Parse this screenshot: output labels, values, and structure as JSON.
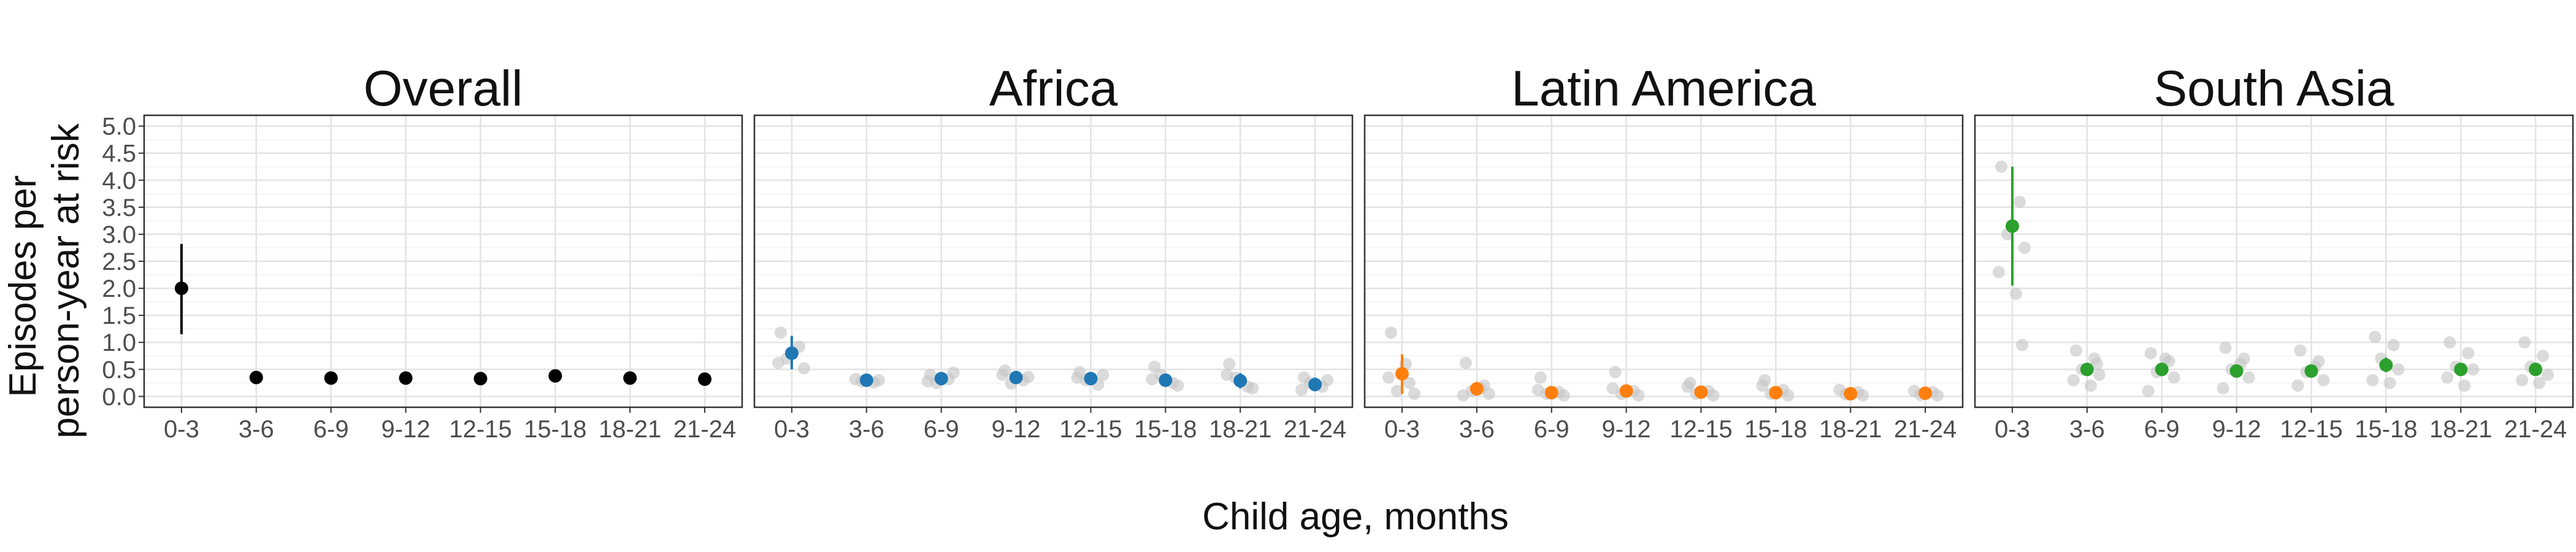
{
  "chart_data": {
    "type": "scatter",
    "xlabel": "Child age, months",
    "ylabel_line1": "Episodes per",
    "ylabel_line2": "person-year at risk",
    "categories": [
      "0-3",
      "3-6",
      "6-9",
      "9-12",
      "12-15",
      "15-18",
      "18-21",
      "21-24"
    ],
    "y_ticks": [
      "0.0",
      "0.5",
      "1.0",
      "1.5",
      "2.0",
      "2.5",
      "3.0",
      "3.5",
      "4.0",
      "4.5",
      "5.0"
    ],
    "ylim": [
      -0.2,
      5.2
    ],
    "grid": true,
    "panels": [
      {
        "title": "Overall",
        "color": "#000000",
        "estimates": [
          2.0,
          0.35,
          0.34,
          0.34,
          0.33,
          0.38,
          0.34,
          0.32
        ],
        "ci_low": [
          1.15,
          0.3,
          0.29,
          0.29,
          0.28,
          0.32,
          0.29,
          0.27
        ],
        "ci_high": [
          2.82,
          0.4,
          0.39,
          0.39,
          0.38,
          0.44,
          0.39,
          0.37
        ],
        "sites": [
          [],
          [],
          [],
          [],
          [],
          [],
          [],
          []
        ]
      },
      {
        "title": "Africa",
        "color": "#1f77b4",
        "estimates": [
          0.8,
          0.3,
          0.33,
          0.35,
          0.33,
          0.3,
          0.29,
          0.22
        ],
        "ci_low": [
          0.5,
          0.22,
          0.25,
          0.27,
          0.25,
          0.2,
          0.15,
          0.1
        ],
        "ci_high": [
          1.12,
          0.38,
          0.41,
          0.45,
          0.42,
          0.4,
          0.43,
          0.35
        ],
        "sites": [
          [
            1.18,
            0.92,
            0.7,
            0.52,
            0.62
          ],
          [
            0.32,
            0.26,
            0.28,
            0.3
          ],
          [
            0.4,
            0.32,
            0.25,
            0.44,
            0.28
          ],
          [
            0.48,
            0.3,
            0.24,
            0.36,
            0.4
          ],
          [
            0.45,
            0.22,
            0.3,
            0.4,
            0.35
          ],
          [
            0.55,
            0.25,
            0.4,
            0.2,
            0.32
          ],
          [
            0.6,
            0.18,
            0.35,
            0.15,
            0.4
          ],
          [
            0.35,
            0.18,
            0.25,
            0.3,
            0.12
          ]
        ]
      },
      {
        "title": "Latin America",
        "color": "#ff7f0e",
        "estimates": [
          0.42,
          0.14,
          0.07,
          0.1,
          0.08,
          0.07,
          0.05,
          0.06
        ],
        "ci_low": [
          0.05,
          0.02,
          0.02,
          0.03,
          0.02,
          0.02,
          0.01,
          0.02
        ],
        "ci_high": [
          0.78,
          0.27,
          0.13,
          0.17,
          0.14,
          0.12,
          0.09,
          0.1
        ],
        "sites": [
          [
            1.18,
            0.25,
            0.1,
            0.05,
            0.35,
            0.6
          ],
          [
            0.62,
            0.2,
            0.1,
            0.05,
            0.02,
            0.15
          ],
          [
            0.35,
            0.08,
            0.05,
            0.02,
            0.12
          ],
          [
            0.45,
            0.1,
            0.05,
            0.02,
            0.15
          ],
          [
            0.25,
            0.1,
            0.05,
            0.02,
            0.18
          ],
          [
            0.3,
            0.12,
            0.05,
            0.02,
            0.2
          ],
          [
            0.12,
            0.08,
            0.04,
            0.02
          ],
          [
            0.1,
            0.08,
            0.03,
            0.02
          ]
        ]
      },
      {
        "title": "South Asia",
        "color": "#2ca02c",
        "estimates": [
          3.15,
          0.5,
          0.5,
          0.47,
          0.47,
          0.58,
          0.5,
          0.5
        ],
        "ci_low": [
          2.05,
          0.4,
          0.4,
          0.37,
          0.37,
          0.45,
          0.4,
          0.4
        ],
        "ci_high": [
          4.25,
          0.6,
          0.6,
          0.57,
          0.57,
          0.72,
          0.6,
          0.6
        ],
        "sites": [
          [
            4.25,
            3.6,
            3.0,
            2.75,
            2.3,
            1.9,
            0.95
          ],
          [
            0.85,
            0.7,
            0.5,
            0.4,
            0.3,
            0.2,
            0.6
          ],
          [
            0.8,
            0.65,
            0.45,
            0.35,
            0.1,
            0.7
          ],
          [
            0.9,
            0.7,
            0.5,
            0.35,
            0.15,
            0.6
          ],
          [
            0.85,
            0.65,
            0.45,
            0.3,
            0.2,
            0.55
          ],
          [
            1.1,
            0.95,
            0.7,
            0.5,
            0.3,
            0.25
          ],
          [
            1.0,
            0.8,
            0.55,
            0.5,
            0.35,
            0.2
          ],
          [
            1.0,
            0.75,
            0.55,
            0.4,
            0.3,
            0.25
          ]
        ]
      }
    ]
  }
}
